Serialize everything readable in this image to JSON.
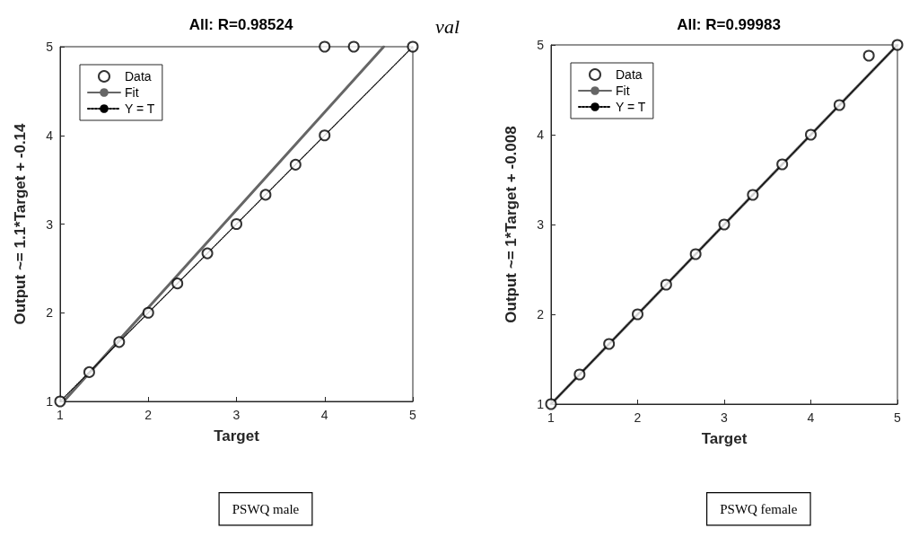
{
  "chart_data": [
    {
      "type": "scatter",
      "title": "All: R=0.98524",
      "xlabel": "Target",
      "ylabel": "Output ~= 1.1*Target + -0.14",
      "xlim": [
        1,
        5
      ],
      "xticks": [
        1,
        2,
        3,
        4,
        5
      ],
      "ylim": [
        1,
        5
      ],
      "yticks": [
        1,
        2,
        3,
        4,
        5
      ],
      "legend": "top left",
      "annotations": [
        "val",
        "PSWQ male"
      ],
      "series": [
        {
          "name": "Data",
          "type": "scatter",
          "marker": "circle",
          "color": "#000000",
          "x": [
            1,
            1.33,
            1.67,
            2,
            2.33,
            2.67,
            3,
            3.33,
            3.67,
            4,
            4,
            4.33,
            5
          ],
          "values": [
            1,
            1.33,
            1.67,
            2,
            2.33,
            2.67,
            3,
            3.33,
            3.67,
            4,
            5,
            5,
            5
          ]
        },
        {
          "name": "Fit",
          "type": "line",
          "marker": "none",
          "line_style": "solid",
          "color": "#666666",
          "x": [
            1.04,
            4.67
          ],
          "values": [
            1,
            5
          ]
        },
        {
          "name": "Y = T",
          "type": "line",
          "marker": "none",
          "line_style": "dotted",
          "color": "#000000",
          "x": [
            1,
            5
          ],
          "values": [
            1,
            5
          ]
        }
      ]
    },
    {
      "type": "scatter",
      "title": "All: R=0.99983",
      "xlabel": "Target",
      "ylabel": "Output ~= 1*Target + -0.008",
      "xlim": [
        1,
        5
      ],
      "xticks": [
        1,
        2,
        3,
        4,
        5
      ],
      "ylim": [
        1,
        5
      ],
      "yticks": [
        1,
        2,
        3,
        4,
        5
      ],
      "legend": "top left",
      "annotations": [
        "PSWQ female"
      ],
      "series": [
        {
          "name": "Data",
          "type": "scatter",
          "marker": "circle",
          "color": "#000000",
          "x": [
            1,
            1.33,
            1.67,
            2,
            2.33,
            2.67,
            3,
            3.33,
            3.67,
            4,
            4.33,
            4.67,
            5
          ],
          "values": [
            1,
            1.33,
            1.67,
            2,
            2.33,
            2.67,
            3,
            3.33,
            3.67,
            4,
            4.33,
            4.88,
            5
          ]
        },
        {
          "name": "Fit",
          "type": "line",
          "marker": "none",
          "line_style": "solid",
          "color": "#666666",
          "x": [
            1,
            5
          ],
          "values": [
            1,
            5
          ]
        },
        {
          "name": "Y = T",
          "type": "line",
          "marker": "none",
          "line_style": "dotted",
          "color": "#000000",
          "x": [
            1,
            5
          ],
          "values": [
            1,
            5
          ]
        }
      ]
    }
  ]
}
